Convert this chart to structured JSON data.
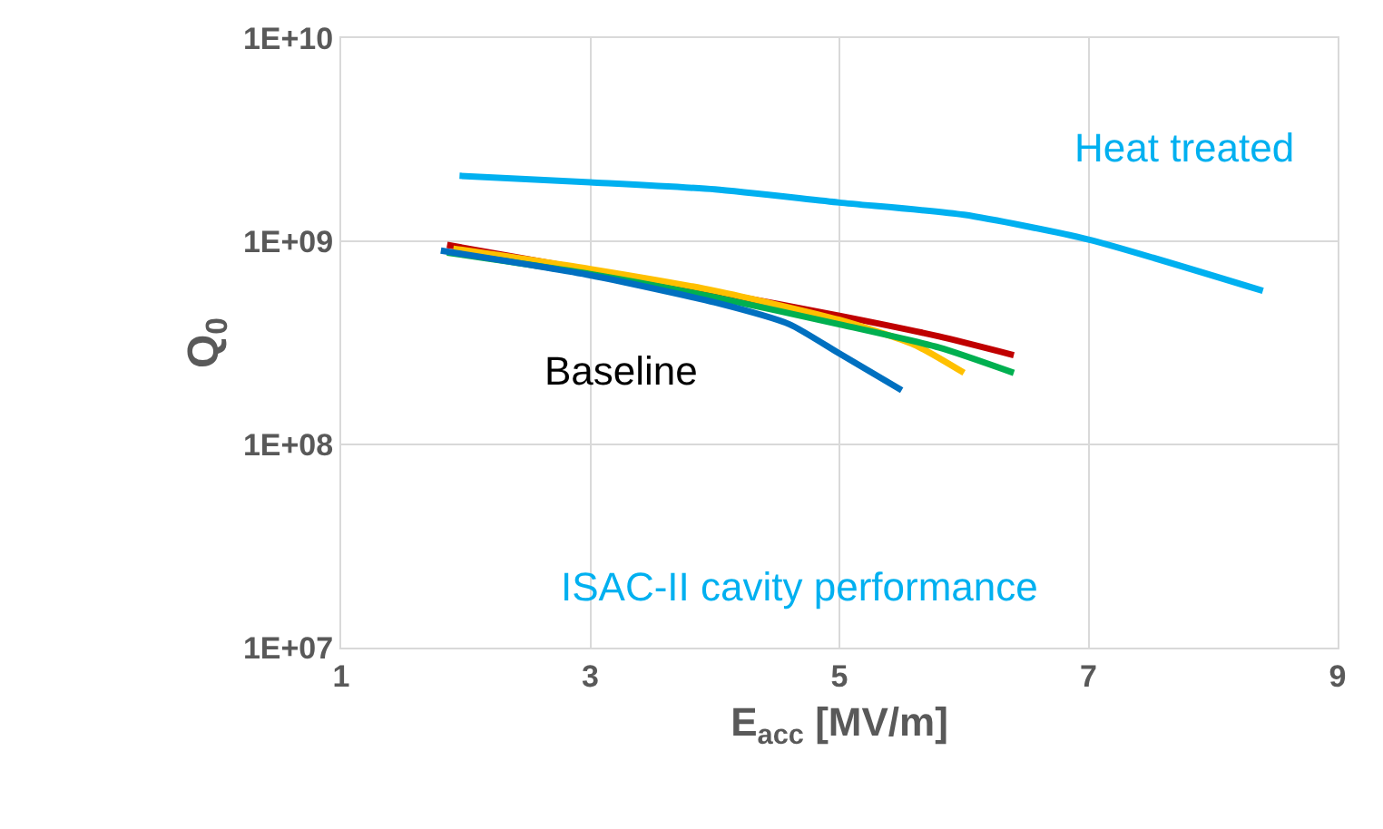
{
  "chart_data": {
    "type": "line",
    "xlabel": "E$_{acc}$ [MV/m]",
    "ylabel": "Q$_{0}$",
    "log": "y",
    "grid": true,
    "marker": "none",
    "line_style": "solid",
    "xlim": [
      1,
      9
    ],
    "xticks": [
      1,
      3,
      5,
      7,
      9
    ],
    "ylim": [
      10000000,
      10000000000
    ],
    "yticks": [
      {
        "value": 10000000,
        "label": "1E+07"
      },
      {
        "value": 100000000,
        "label": "1E+08"
      },
      {
        "value": 1000000000,
        "label": "1E+09"
      },
      {
        "value": 10000000000,
        "label": "1E+10"
      }
    ],
    "annotations": [
      "Heat treated",
      "Baseline",
      "ISAC-II cavity performance"
    ],
    "series": [
      {
        "color": "#00b0f0",
        "x": [
          1.95,
          3,
          4,
          5,
          6,
          7,
          8.4
        ],
        "values": [
          2100000000,
          1950000000,
          1800000000,
          1550000000,
          1350000000,
          1020000000,
          570000000
        ]
      },
      {
        "color": "#c00000",
        "x": [
          1.85,
          3,
          4,
          5,
          5.8,
          6.4
        ],
        "values": [
          960000000,
          720000000,
          560000000,
          430000000,
          340000000,
          275000000
        ]
      },
      {
        "color": "#ffc000",
        "x": [
          1.9,
          3,
          4,
          5,
          5.6,
          6.0
        ],
        "values": [
          920000000,
          730000000,
          570000000,
          410000000,
          310000000,
          225000000
        ]
      },
      {
        "color": "#00b050",
        "x": [
          1.85,
          3,
          4,
          5,
          5.8,
          6.4
        ],
        "values": [
          880000000,
          690000000,
          530000000,
          390000000,
          300000000,
          225000000
        ]
      },
      {
        "color": "#0070c0",
        "x": [
          1.8,
          3,
          4,
          4.6,
          5,
          5.5
        ],
        "values": [
          900000000,
          680000000,
          500000000,
          390000000,
          280000000,
          185000000
        ]
      }
    ]
  }
}
